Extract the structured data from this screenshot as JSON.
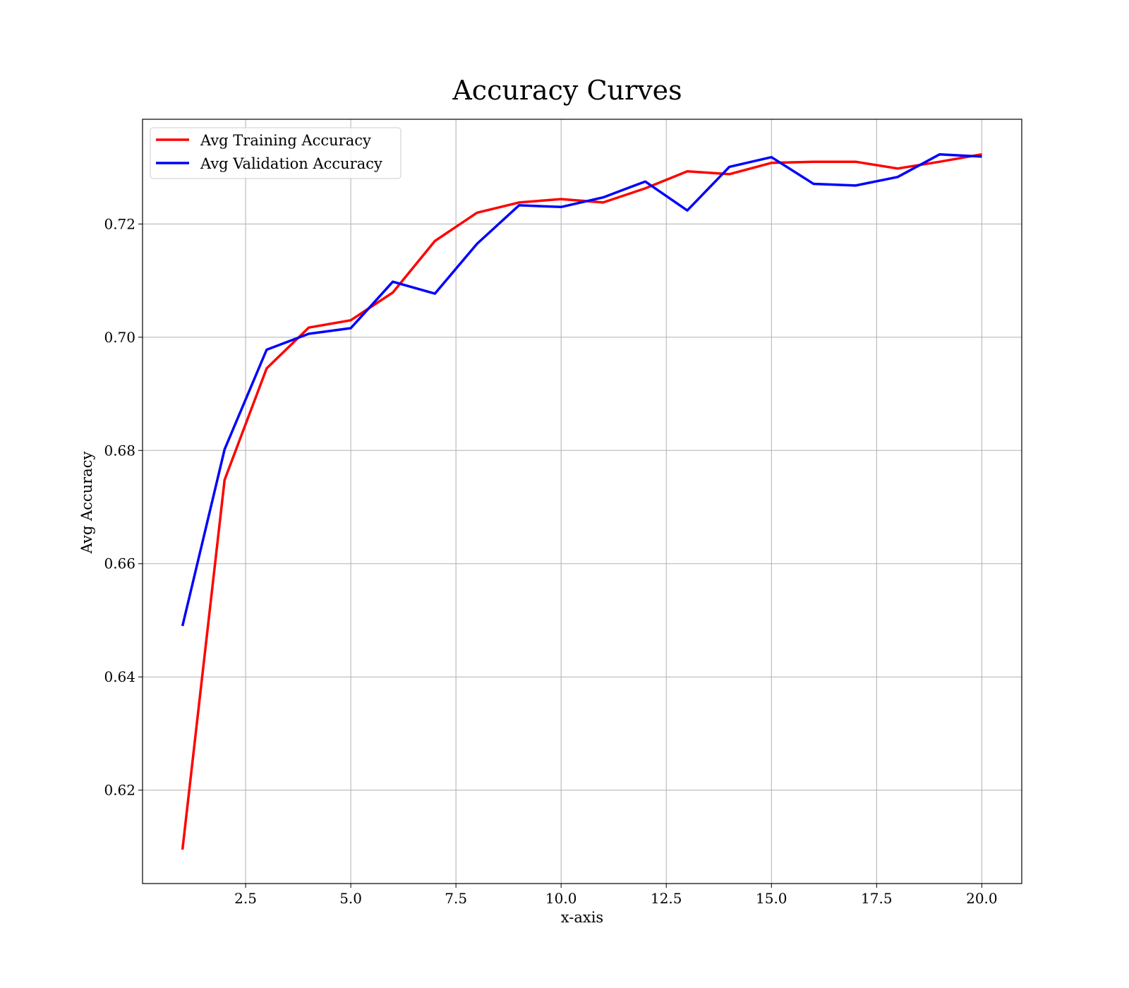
{
  "chart_data": {
    "type": "line",
    "title": "Accuracy Curves",
    "xlabel": "x-axis",
    "ylabel": "Avg Accuracy",
    "xlim": [
      0.05,
      20.95
    ],
    "ylim": [
      0.6035,
      0.7385
    ],
    "xticks": [
      2.5,
      5.0,
      7.5,
      10.0,
      12.5,
      15.0,
      17.5,
      20.0
    ],
    "xtick_labels": [
      "2.5",
      "5.0",
      "7.5",
      "10.0",
      "12.5",
      "15.0",
      "17.5",
      "20.0"
    ],
    "yticks": [
      0.62,
      0.64,
      0.66,
      0.68,
      0.7,
      0.72
    ],
    "ytick_labels": [
      "0.62",
      "0.64",
      "0.66",
      "0.68",
      "0.70",
      "0.72"
    ],
    "grid": true,
    "legend_position": "top-left",
    "x": [
      1,
      2,
      3,
      4,
      5,
      6,
      7,
      8,
      9,
      10,
      11,
      12,
      13,
      14,
      15,
      16,
      17,
      18,
      19,
      20
    ],
    "series": [
      {
        "name": "Avg Training Accuracy",
        "color": "#ff0000",
        "values": [
          0.6095,
          0.6748,
          0.6945,
          0.7017,
          0.703,
          0.7079,
          0.717,
          0.722,
          0.7238,
          0.7244,
          0.7238,
          0.7263,
          0.7293,
          0.7288,
          0.7308,
          0.731,
          0.731,
          0.7298,
          0.731,
          0.7323
        ]
      },
      {
        "name": "Avg Validation Accuracy",
        "color": "#0000ff",
        "values": [
          0.649,
          0.6802,
          0.6978,
          0.7006,
          0.7016,
          0.7098,
          0.7077,
          0.7165,
          0.7233,
          0.723,
          0.7247,
          0.7275,
          0.7224,
          0.7301,
          0.7318,
          0.7271,
          0.7268,
          0.7283,
          0.7323,
          0.7319
        ]
      }
    ]
  }
}
